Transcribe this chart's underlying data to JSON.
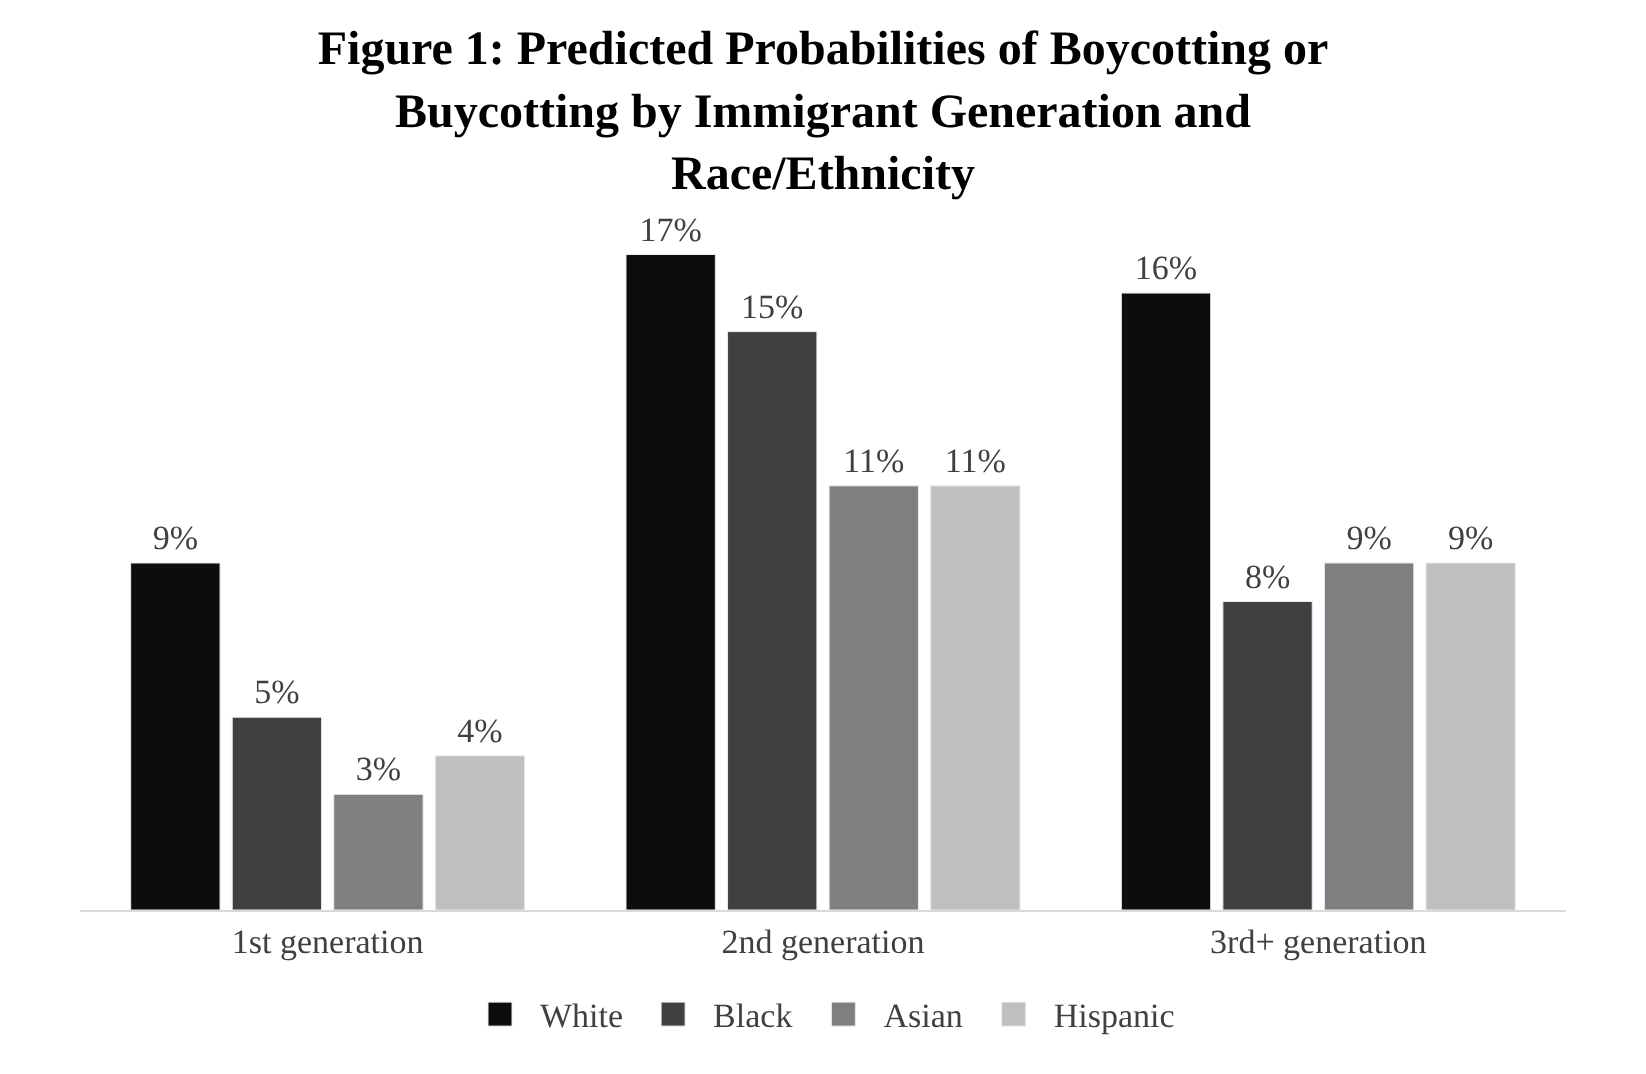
{
  "chart_data": {
    "type": "bar",
    "title": "Figure 1: Predicted Probabilities of Boycotting or Buycotting by Immigrant Generation and Race/Ethnicity",
    "categories": [
      "1st generation",
      "2nd generation",
      "3rd+ generation"
    ],
    "series": [
      {
        "name": "White",
        "color": "#0d0d0d",
        "values": [
          9,
          17,
          16
        ],
        "value_labels": [
          "9%",
          "17%",
          "16%"
        ]
      },
      {
        "name": "Black",
        "color": "#404040",
        "values": [
          5,
          15,
          8
        ],
        "value_labels": [
          "5%",
          "15%",
          "8%"
        ]
      },
      {
        "name": "Asian",
        "color": "#7f7f7f",
        "values": [
          3,
          11,
          9
        ],
        "value_labels": [
          "3%",
          "11%",
          "9%"
        ]
      },
      {
        "name": "Hispanic",
        "color": "#bfbfbf",
        "values": [
          4,
          11,
          9
        ],
        "value_labels": [
          "4%",
          "11%",
          "9%"
        ]
      }
    ],
    "legend": "bottom"
  }
}
